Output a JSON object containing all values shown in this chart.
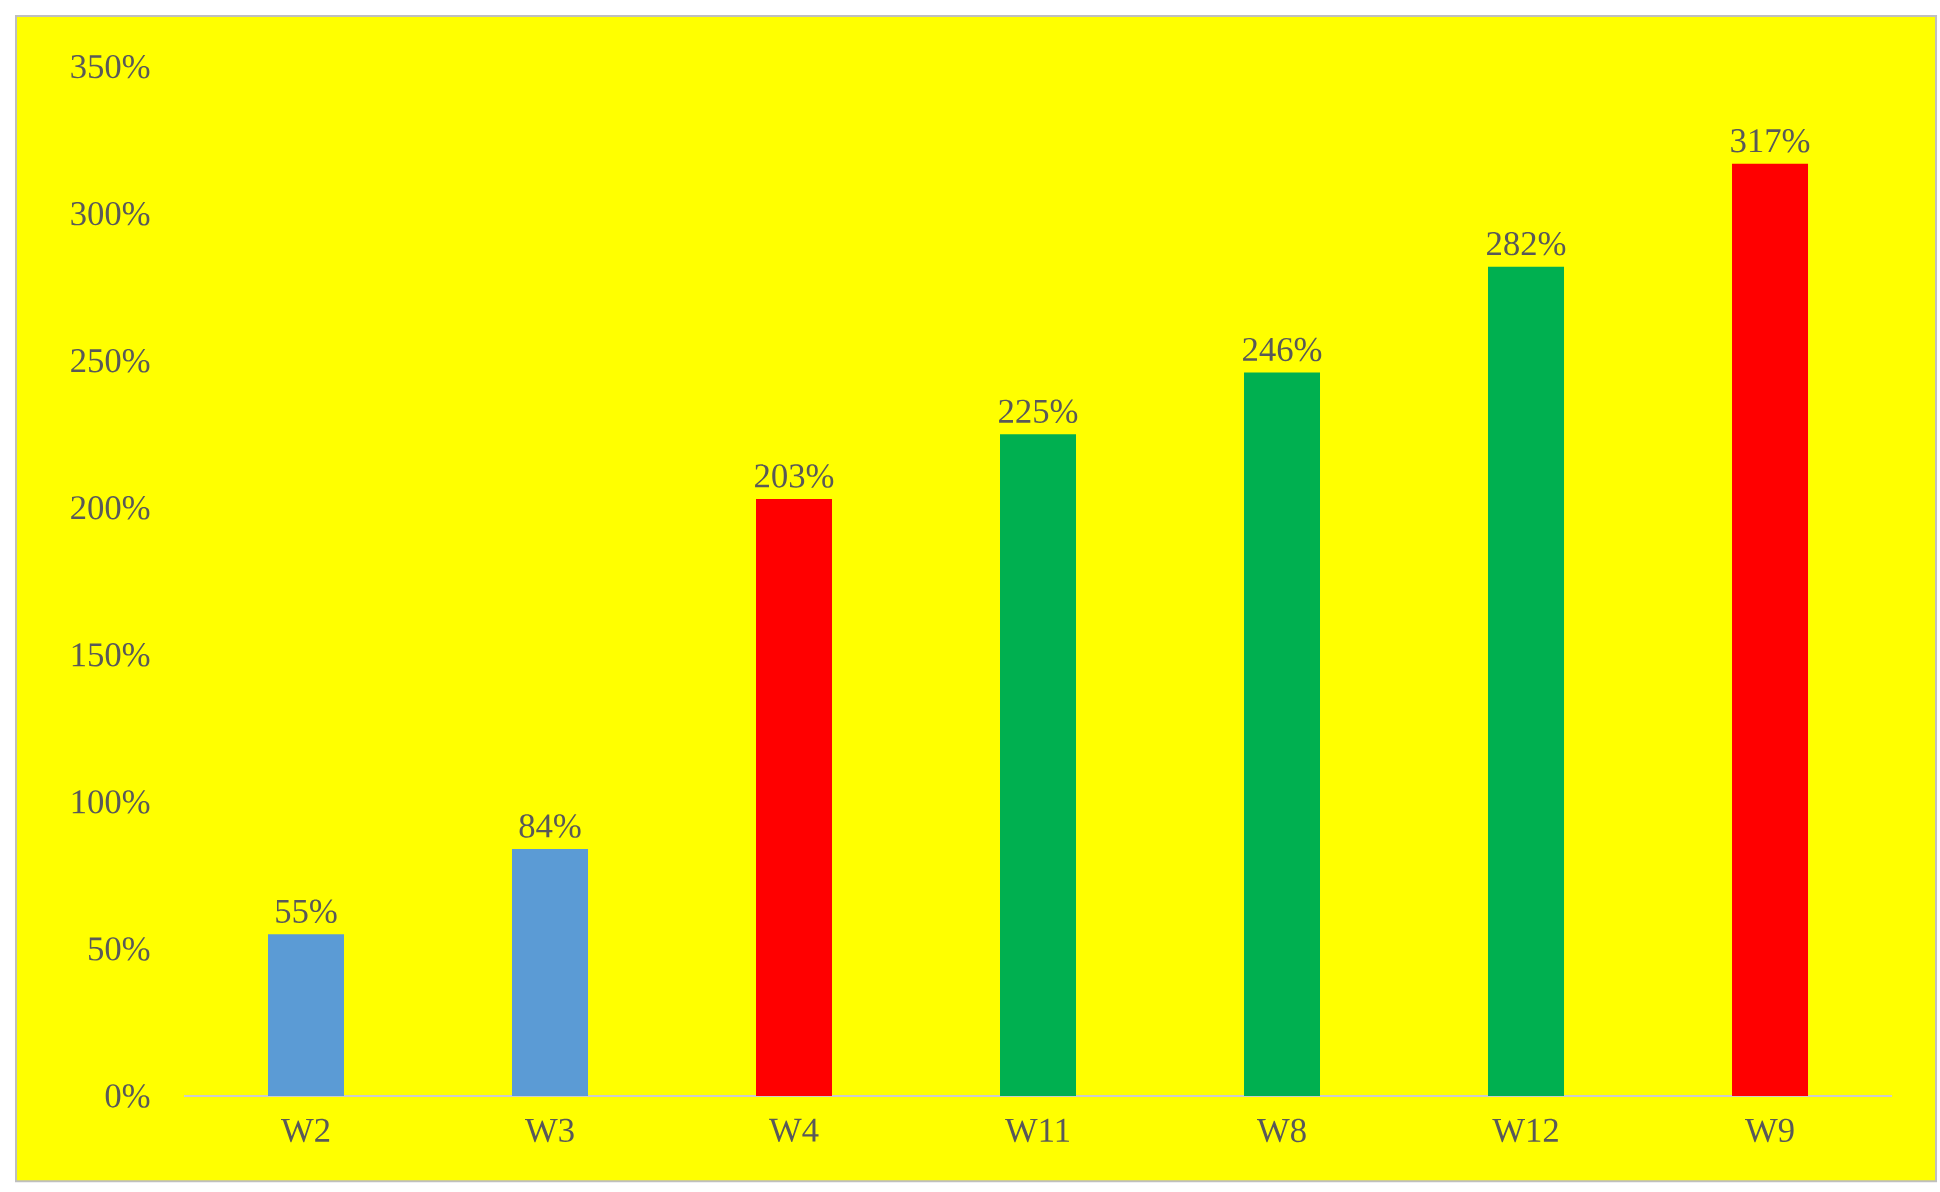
{
  "chart_data": {
    "type": "bar",
    "categories": [
      "W2",
      "W3",
      "W4",
      "W11",
      "W8",
      "W12",
      "W9"
    ],
    "values": [
      55,
      84,
      203,
      225,
      246,
      282,
      317
    ],
    "colors": [
      "#5b9bd5",
      "#5b9bd5",
      "#ff0000",
      "#00b050",
      "#00b050",
      "#00b050",
      "#ff0000"
    ],
    "value_labels": [
      "55%",
      "84%",
      "203%",
      "225%",
      "246%",
      "282%",
      "317%"
    ],
    "ylim": [
      0,
      350
    ],
    "yticks": [
      {
        "value": 0,
        "label": "0%"
      },
      {
        "value": 50,
        "label": "50%"
      },
      {
        "value": 100,
        "label": "100%"
      },
      {
        "value": 150,
        "label": "150%"
      },
      {
        "value": 200,
        "label": "200%"
      },
      {
        "value": 250,
        "label": "250%"
      },
      {
        "value": 300,
        "label": "300%"
      },
      {
        "value": 350,
        "label": "350%"
      }
    ]
  }
}
